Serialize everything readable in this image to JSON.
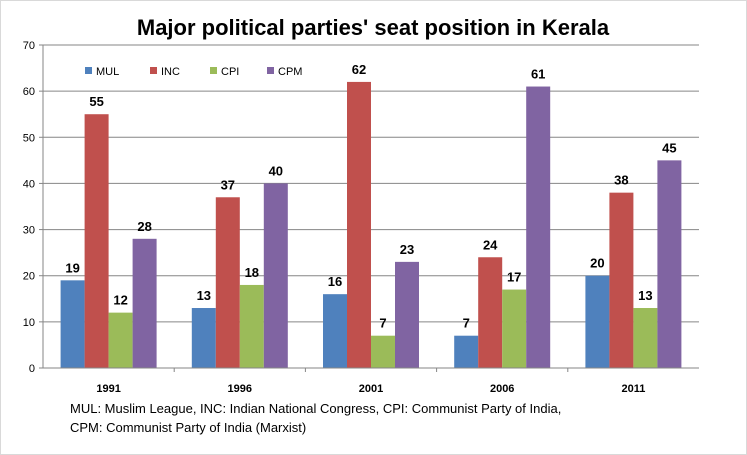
{
  "chart_data": {
    "type": "bar",
    "title": "Major political parties' seat position in Kerala",
    "categories": [
      "1991",
      "1996",
      "2001",
      "2006",
      "2011"
    ],
    "series": [
      {
        "name": "MUL",
        "color": "#4f81bd",
        "values": [
          19,
          13,
          16,
          7,
          20
        ]
      },
      {
        "name": "INC",
        "color": "#c0504d",
        "values": [
          55,
          37,
          62,
          24,
          38
        ]
      },
      {
        "name": "CPI",
        "color": "#9bbb59",
        "values": [
          12,
          18,
          7,
          17,
          13
        ]
      },
      {
        "name": "CPM",
        "color": "#8064a2",
        "values": [
          28,
          40,
          23,
          61,
          45
        ]
      }
    ],
    "ylim": [
      0,
      70
    ],
    "yticks": [
      0,
      10,
      20,
      30,
      40,
      50,
      60,
      70
    ],
    "grid": true,
    "legend": "top-left",
    "data_labels": true
  },
  "footnote": {
    "line1": "MUL:  Muslim League, INC: Indian National Congress,  CPI: Communist Party of India,",
    "line2": "CPM: Communist Party of India (Marxist)"
  }
}
